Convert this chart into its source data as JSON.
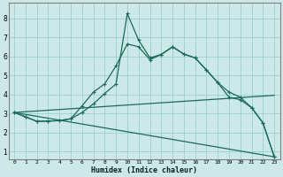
{
  "background_color": "#cce8e8",
  "grid_color": "#9ecece",
  "line_color": "#1a6b5a",
  "xlabel": "Humidex (Indice chaleur)",
  "xlim": [
    -0.5,
    23.5
  ],
  "ylim": [
    0.6,
    8.8
  ],
  "yticks": [
    1,
    2,
    3,
    4,
    5,
    6,
    7,
    8
  ],
  "xticks": [
    0,
    1,
    2,
    3,
    4,
    5,
    6,
    7,
    8,
    9,
    10,
    11,
    12,
    13,
    14,
    15,
    16,
    17,
    18,
    19,
    20,
    21,
    22,
    23
  ],
  "series_main": {
    "x": [
      0,
      1,
      2,
      3,
      4,
      5,
      6,
      7,
      8,
      9,
      10,
      11,
      12,
      13,
      14,
      15,
      16,
      17,
      18,
      19,
      20,
      21,
      22,
      23
    ],
    "y": [
      3.05,
      2.82,
      2.58,
      2.6,
      2.62,
      2.72,
      3.4,
      4.12,
      4.55,
      5.5,
      6.65,
      6.5,
      5.82,
      6.1,
      6.5,
      6.12,
      5.92,
      5.28,
      4.62,
      3.85,
      3.72,
      3.3,
      2.5,
      0.72
    ]
  },
  "series_peak": {
    "x": [
      0,
      1,
      2,
      3,
      4,
      5,
      6,
      7,
      8,
      9,
      10,
      11,
      12,
      13,
      14,
      15,
      16,
      17,
      18,
      19,
      20,
      21,
      22,
      23
    ],
    "y": [
      3.05,
      2.82,
      2.58,
      2.6,
      2.62,
      2.72,
      3.05,
      3.5,
      4.05,
      4.55,
      8.25,
      6.85,
      5.92,
      6.1,
      6.5,
      6.12,
      5.92,
      5.28,
      4.62,
      4.12,
      3.85,
      3.3,
      2.5,
      0.72
    ]
  },
  "line_down": {
    "x": [
      0,
      23
    ],
    "y": [
      3.05,
      0.72
    ]
  },
  "line_up": {
    "x": [
      0,
      23
    ],
    "y": [
      3.05,
      3.95
    ]
  }
}
